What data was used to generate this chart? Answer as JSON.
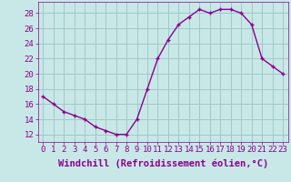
{
  "hours": [
    0,
    1,
    2,
    3,
    4,
    5,
    6,
    7,
    8,
    9,
    10,
    11,
    12,
    13,
    14,
    15,
    16,
    17,
    18,
    19,
    20,
    21,
    22,
    23
  ],
  "values": [
    17.0,
    16.0,
    15.0,
    14.5,
    14.0,
    13.0,
    12.5,
    12.0,
    12.0,
    14.0,
    18.0,
    22.0,
    24.5,
    26.5,
    27.5,
    28.5,
    28.0,
    28.5,
    28.5,
    28.0,
    26.5,
    22.0,
    21.0,
    20.0
  ],
  "line_color": "#8b008b",
  "marker": "+",
  "bg_color": "#c8e8e8",
  "grid_color": "#a0c8c8",
  "xlabel": "Windchill (Refroidissement éolien,°C)",
  "yticks": [
    12,
    14,
    16,
    18,
    20,
    22,
    24,
    26,
    28
  ],
  "xlim": [
    -0.5,
    23.5
  ],
  "ylim": [
    11.0,
    29.5
  ],
  "tick_fontsize": 6.5,
  "xlabel_fontsize": 7.5,
  "markersize": 3.5,
  "linewidth": 1.0
}
